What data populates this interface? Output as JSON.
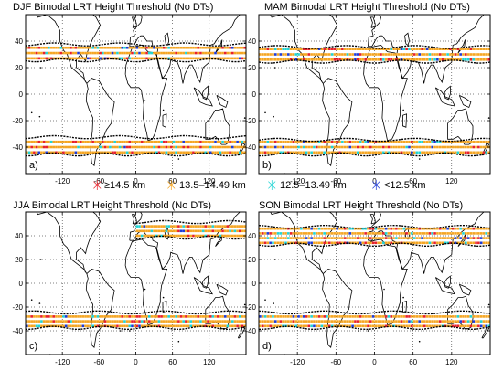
{
  "panels": [
    {
      "key": "djf",
      "title": "DJF Bimodal LRT Height Threshold (No DTs)",
      "letter": "a)",
      "bands": [
        {
          "lon": [
            -180,
            180
          ],
          "lat": [
            27,
            36
          ],
          "cat": "orange"
        },
        {
          "lon": [
            -180,
            180
          ],
          "lat": [
            -44,
            -34
          ],
          "cat": "orange"
        }
      ]
    },
    {
      "key": "mam",
      "title": "MAM Bimodal LRT Height Threshold (No DTs)",
      "letter": "b)",
      "bands": [
        {
          "lon": [
            -180,
            180
          ],
          "lat": [
            26,
            34
          ],
          "cat": "orange"
        },
        {
          "lon": [
            -180,
            180
          ],
          "lat": [
            -44,
            -36
          ],
          "cat": "orange"
        }
      ]
    },
    {
      "key": "jja",
      "title": "JJA Bimodal LRT Height Threshold (No DTs)",
      "letter": "c)",
      "bands": [
        {
          "lon": [
            0,
            180
          ],
          "lat": [
            40,
            50
          ],
          "cat": "orange"
        },
        {
          "lon": [
            -180,
            180
          ],
          "lat": [
            -36,
            -26
          ],
          "cat": "orange"
        }
      ]
    },
    {
      "key": "son",
      "title": "SON Bimodal LRT Height Threshold (No DTs)",
      "letter": "d)",
      "bands": [
        {
          "lon": [
            -180,
            180
          ],
          "lat": [
            34,
            46
          ],
          "cat": "orange"
        },
        {
          "lon": [
            -180,
            180
          ],
          "lat": [
            -36,
            -26
          ],
          "cat": "orange"
        }
      ]
    }
  ],
  "axes": {
    "x_ticks": [
      "-120",
      "-60",
      "0",
      "60",
      "120"
    ],
    "x_values": [
      -120,
      -60,
      0,
      60,
      120
    ],
    "y_ticks": [
      "40",
      "20",
      "0",
      "-20",
      "-40"
    ],
    "y_values": [
      40,
      20,
      0,
      -20,
      -40
    ],
    "lon_range": [
      -180,
      180
    ],
    "lat_range": [
      -60,
      60
    ],
    "grid": "dotted"
  },
  "legend": [
    {
      "label": "≥14.5 km",
      "color": "#e8222b"
    },
    {
      "label": "13.5–14.49 km",
      "color": "#f5a623"
    },
    {
      "label": "12.5–13.49 km",
      "color": "#22d4d4"
    },
    {
      "label": "<12.5 km",
      "color": "#1f3bd6"
    }
  ],
  "colors": {
    "red": "#e8222b",
    "orange": "#f5a623",
    "cyan": "#22d4d4",
    "blue": "#1f3bd6",
    "contour": "#000000"
  }
}
